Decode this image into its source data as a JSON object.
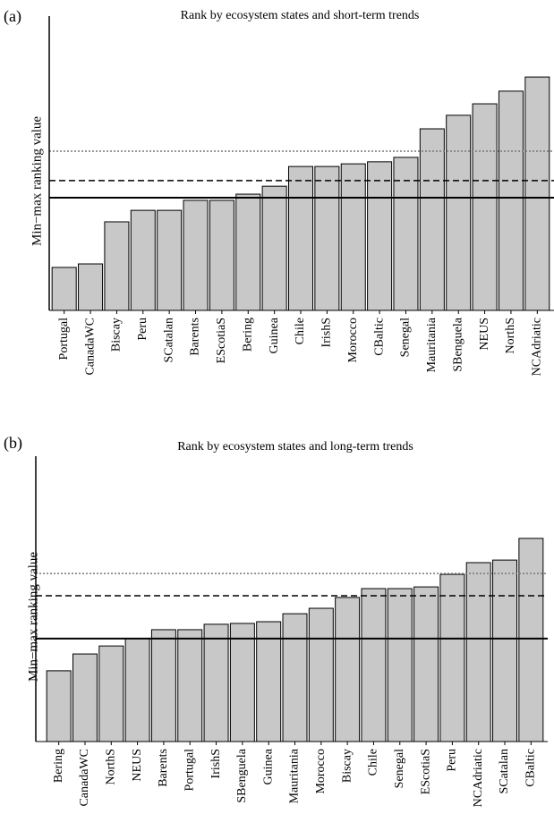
{
  "chart_data": [
    {
      "type": "bar",
      "panel": "(a)",
      "title": "Rank by ecosystem states and short-term trends",
      "y_label": "Min−max ranking value",
      "categories": [
        "Portugal",
        "CanadaWC",
        "Biscay",
        "Peru",
        "SCatalan",
        "Barents",
        "EScotiaS",
        "Bering",
        "Guinea",
        "Chile",
        "IrishS",
        "Morocco",
        "CBaltic",
        "Senegal",
        "Mauritania",
        "SBenguela",
        "NEUS",
        "NorthS",
        "NCAdriatic"
      ],
      "values": [
        0.146,
        0.158,
        0.301,
        0.34,
        0.34,
        0.374,
        0.374,
        0.395,
        0.422,
        0.489,
        0.489,
        0.498,
        0.505,
        0.52,
        0.617,
        0.663,
        0.702,
        0.745,
        0.793
      ],
      "color": "#c8c8c8",
      "ylim": [
        0,
        1
      ],
      "reference_lines": [
        {
          "style": "dotted",
          "value": 0.541
        },
        {
          "style": "dashed",
          "value": 0.441
        },
        {
          "style": "solid",
          "value": 0.383
        }
      ]
    },
    {
      "type": "bar",
      "panel": "(b)",
      "title": "Rank by ecosystem states and long-term trends",
      "y_label": "Min−max ranking value",
      "categories": [
        "Bering",
        "CanadaWC",
        "NorthS",
        "NEUS",
        "Barents",
        "Portugal",
        "IrishS",
        "SBenguela",
        "Guinea",
        "Mauritania",
        "Morocco",
        "Biscay",
        "Chile",
        "Senegal",
        "EScotiaS",
        "Peru",
        "NCAdriatic",
        "SCatalan",
        "CBaltic"
      ],
      "values": [
        0.248,
        0.307,
        0.335,
        0.361,
        0.392,
        0.392,
        0.411,
        0.414,
        0.42,
        0.448,
        0.467,
        0.505,
        0.536,
        0.536,
        0.542,
        0.586,
        0.627,
        0.636,
        0.712
      ],
      "color": "#c8c8c8",
      "ylim": [
        0,
        1
      ],
      "reference_lines": [
        {
          "style": "dotted",
          "value": 0.589
        },
        {
          "style": "dashed",
          "value": 0.511
        },
        {
          "style": "solid",
          "value": 0.361
        }
      ]
    }
  ]
}
